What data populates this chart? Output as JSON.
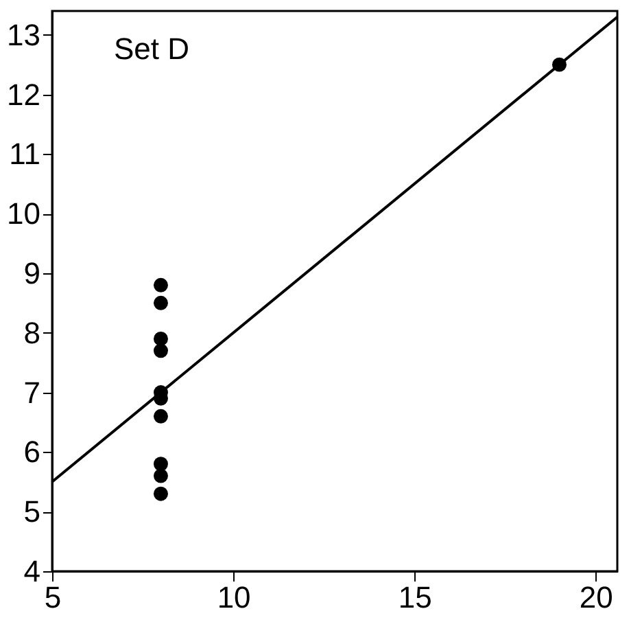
{
  "chart_data": {
    "type": "scatter",
    "title": "Set D",
    "series": [
      {
        "color": "#000000",
        "x": [
          8,
          8,
          8,
          8,
          8,
          8,
          8,
          19,
          8,
          8,
          8
        ],
        "values": [
          6.6,
          5.8,
          7.7,
          8.8,
          8.5,
          7.0,
          5.3,
          12.5,
          5.6,
          7.9,
          6.9
        ]
      },
      {
        "type": "line",
        "marker": "none",
        "color": "#000000",
        "x": [
          5,
          20.6
        ],
        "values": [
          5.5,
          13.3
        ]
      }
    ],
    "xlim": [
      5,
      20.6
    ],
    "ylim": [
      4,
      13.4
    ],
    "xticks": [
      5,
      10,
      15,
      20
    ],
    "yticks": [
      4,
      5,
      6,
      7,
      8,
      9,
      10,
      11,
      12,
      13
    ],
    "grid": false,
    "marker": "circle",
    "line_style": "solid"
  }
}
